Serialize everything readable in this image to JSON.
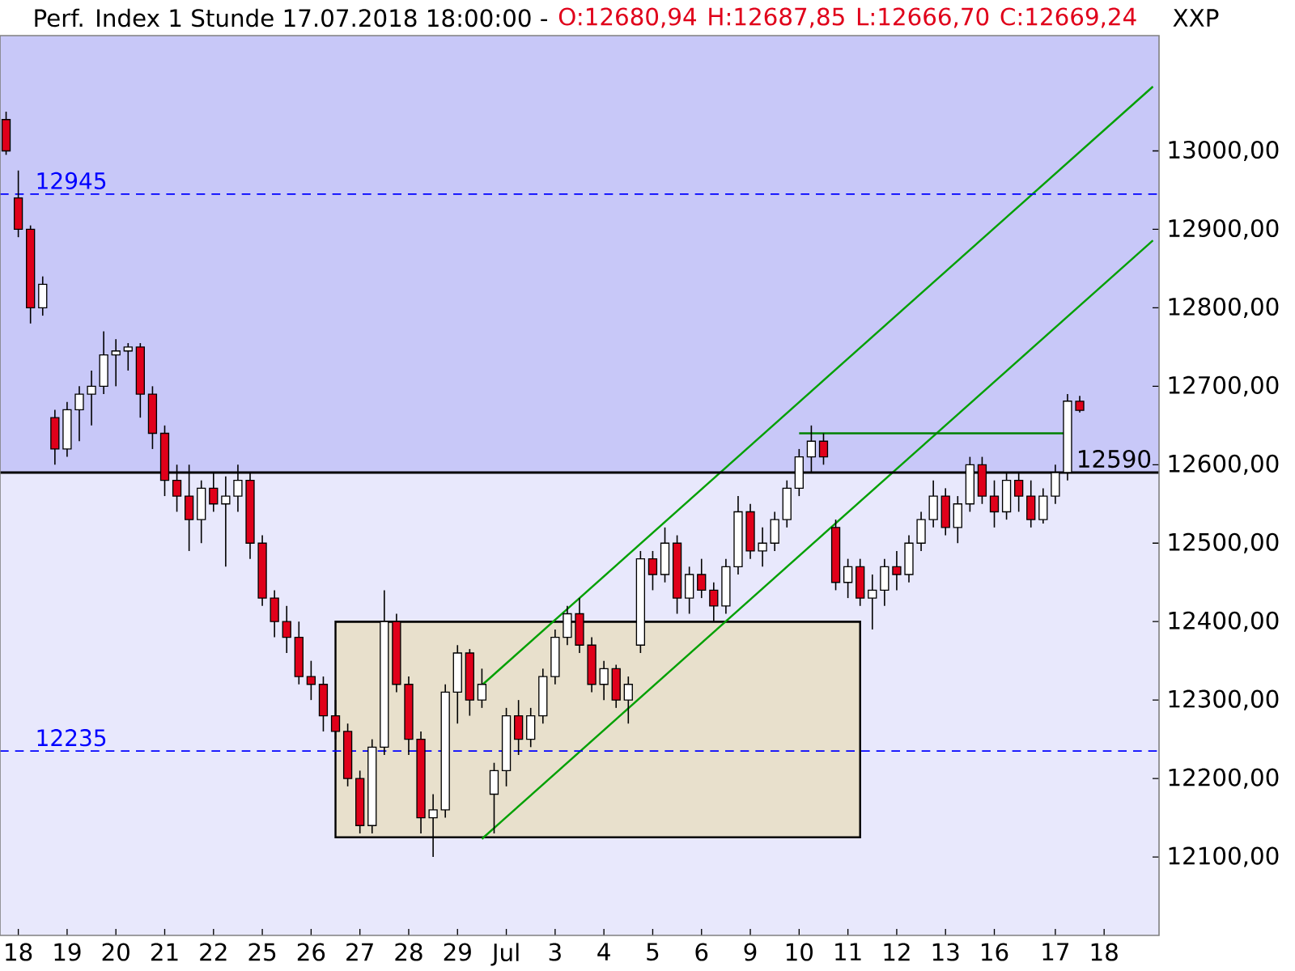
{
  "chart_data": {
    "type": "candlestick",
    "title": "Perf. Index 1 Stunde 17.07.2018 18:00:00 -",
    "annotations": [
      "O:12680,94",
      "H:12687,85",
      "L:12666,70",
      "C:12669,24",
      "XXP"
    ],
    "categories": [
      null,
      "18",
      null,
      null,
      null,
      "19",
      null,
      null,
      null,
      "20",
      null,
      null,
      null,
      "21",
      null,
      null,
      null,
      "22",
      null,
      null,
      null,
      "25",
      null,
      null,
      null,
      "26",
      null,
      null,
      null,
      "27",
      null,
      null,
      null,
      "28",
      null,
      null,
      null,
      "29",
      null,
      null,
      null,
      "Jul",
      null,
      null,
      null,
      "3",
      null,
      null,
      null,
      "4",
      null,
      null,
      null,
      "5",
      null,
      null,
      null,
      "6",
      null,
      null,
      null,
      "9",
      null,
      null,
      null,
      "10",
      null,
      null,
      null,
      "11",
      null,
      null,
      null,
      "12",
      null,
      null,
      null,
      "13",
      null,
      null,
      null,
      "16",
      null,
      null,
      null,
      null,
      "17",
      null,
      null,
      null,
      "18",
      null,
      null,
      null,
      null
    ],
    "ohlc": [
      [
        13040,
        13050,
        12995,
        13000
      ],
      [
        12940,
        12975,
        12890,
        12900
      ],
      [
        12900,
        12905,
        12780,
        12800
      ],
      [
        12800,
        12840,
        12790,
        12830
      ],
      [
        12660,
        12670,
        12600,
        12620
      ],
      [
        12620,
        12680,
        12610,
        12670
      ],
      [
        12670,
        12700,
        12630,
        12690
      ],
      [
        12690,
        12720,
        12650,
        12700
      ],
      [
        12700,
        12770,
        12690,
        12740
      ],
      [
        12740,
        12760,
        12700,
        12745
      ],
      [
        12745,
        12755,
        12720,
        12750
      ],
      [
        12750,
        12755,
        12660,
        12690
      ],
      [
        12690,
        12700,
        12620,
        12640
      ],
      [
        12640,
        12650,
        12560,
        12580
      ],
      [
        12580,
        12600,
        12540,
        12560
      ],
      [
        12560,
        12600,
        12490,
        12530
      ],
      [
        12530,
        12580,
        12500,
        12570
      ],
      [
        12570,
        12590,
        12540,
        12550
      ],
      [
        12550,
        12585,
        12470,
        12560
      ],
      [
        12560,
        12600,
        12540,
        12580
      ],
      [
        12580,
        12590,
        12480,
        12500
      ],
      [
        12500,
        12510,
        12420,
        12430
      ],
      [
        12430,
        12440,
        12380,
        12400
      ],
      [
        12400,
        12420,
        12360,
        12380
      ],
      [
        12380,
        12400,
        12320,
        12330
      ],
      [
        12330,
        12350,
        12300,
        12320
      ],
      [
        12320,
        12330,
        12260,
        12280
      ],
      [
        12280,
        12300,
        12250,
        12260
      ],
      [
        12260,
        12270,
        12190,
        12200
      ],
      [
        12200,
        12210,
        12130,
        12140
      ],
      [
        12140,
        12250,
        12130,
        12240
      ],
      [
        12240,
        12440,
        12230,
        12400
      ],
      [
        12400,
        12410,
        12310,
        12320
      ],
      [
        12320,
        12330,
        12230,
        12250
      ],
      [
        12250,
        12260,
        12130,
        12150
      ],
      [
        12150,
        12180,
        12100,
        12160
      ],
      [
        12160,
        12320,
        12150,
        12310
      ],
      [
        12310,
        12370,
        12270,
        12360
      ],
      [
        12360,
        12365,
        12280,
        12300
      ],
      [
        12300,
        12340,
        12290,
        12320
      ],
      [
        12180,
        12220,
        12130,
        12210
      ],
      [
        12210,
        12290,
        12190,
        12280
      ],
      [
        12280,
        12300,
        12230,
        12250
      ],
      [
        12250,
        12290,
        12240,
        12280
      ],
      [
        12280,
        12340,
        12270,
        12330
      ],
      [
        12330,
        12390,
        12320,
        12380
      ],
      [
        12380,
        12420,
        12370,
        12410
      ],
      [
        12410,
        12430,
        12360,
        12370
      ],
      [
        12370,
        12380,
        12310,
        12320
      ],
      [
        12320,
        12350,
        12300,
        12340
      ],
      [
        12340,
        12345,
        12290,
        12300
      ],
      [
        12300,
        12330,
        12270,
        12320
      ],
      [
        12370,
        12490,
        12360,
        12480
      ],
      [
        12480,
        12490,
        12440,
        12460
      ],
      [
        12460,
        12520,
        12450,
        12500
      ],
      [
        12500,
        12510,
        12410,
        12430
      ],
      [
        12430,
        12470,
        12410,
        12460
      ],
      [
        12460,
        12480,
        12430,
        12440
      ],
      [
        12440,
        12450,
        12400,
        12420
      ],
      [
        12420,
        12480,
        12410,
        12470
      ],
      [
        12470,
        12560,
        12460,
        12540
      ],
      [
        12540,
        12550,
        12480,
        12490
      ],
      [
        12490,
        12520,
        12470,
        12500
      ],
      [
        12500,
        12540,
        12490,
        12530
      ],
      [
        12530,
        12580,
        12520,
        12570
      ],
      [
        12570,
        12620,
        12560,
        12610
      ],
      [
        12610,
        12650,
        12590,
        12630
      ],
      [
        12630,
        12640,
        12600,
        12610
      ],
      [
        12520,
        12530,
        12440,
        12450
      ],
      [
        12450,
        12480,
        12430,
        12470
      ],
      [
        12470,
        12480,
        12420,
        12430
      ],
      [
        12430,
        12460,
        12390,
        12440
      ],
      [
        12440,
        12480,
        12420,
        12470
      ],
      [
        12470,
        12490,
        12440,
        12460
      ],
      [
        12460,
        12510,
        12450,
        12500
      ],
      [
        12500,
        12540,
        12490,
        12530
      ],
      [
        12530,
        12580,
        12520,
        12560
      ],
      [
        12560,
        12570,
        12510,
        12520
      ],
      [
        12520,
        12560,
        12500,
        12550
      ],
      [
        12550,
        12610,
        12540,
        12600
      ],
      [
        12600,
        12610,
        12550,
        12560
      ],
      [
        12560,
        12580,
        12520,
        12540
      ],
      [
        12540,
        12590,
        12530,
        12580
      ],
      [
        12580,
        12590,
        12540,
        12560
      ],
      [
        12560,
        12580,
        12520,
        12530
      ],
      [
        12530,
        12570,
        12525,
        12560
      ],
      [
        12560,
        12600,
        12550,
        12590
      ],
      [
        12590,
        12690,
        12580,
        12681
      ],
      [
        12680.94,
        12687.85,
        12666.7,
        12669.24
      ],
      null,
      null,
      null,
      null,
      null,
      null
    ],
    "series": [
      {
        "type": "line",
        "color": "#000000",
        "upper": [
          null,
          null,
          null,
          null,
          null,
          null,
          null,
          null,
          null,
          null,
          null,
          null,
          null,
          null,
          null,
          null,
          null,
          null,
          null,
          null,
          null,
          null,
          null,
          null,
          null,
          null,
          null,
          12400,
          null,
          null,
          null,
          null,
          null,
          null,
          null,
          null,
          null,
          null,
          null,
          null,
          null,
          null,
          null,
          null,
          null,
          null,
          null,
          null,
          null,
          null,
          null,
          null,
          null,
          null,
          null,
          null,
          null,
          null,
          null,
          null,
          null,
          null,
          null,
          null,
          null,
          null,
          null,
          null,
          null,
          null,
          12400,
          null,
          null,
          null,
          null,
          null,
          null,
          null,
          null,
          null,
          null,
          null,
          null,
          null,
          null,
          null,
          null,
          null,
          null,
          null,
          null,
          null,
          null,
          null,
          null
        ],
        "values": [
          null,
          null,
          null,
          null,
          null,
          null,
          null,
          null,
          null,
          null,
          null,
          null,
          null,
          null,
          null,
          null,
          null,
          null,
          null,
          null,
          null,
          null,
          null,
          null,
          null,
          null,
          null,
          12400,
          null,
          null,
          null,
          null,
          null,
          null,
          null,
          null,
          null,
          null,
          null,
          null,
          null,
          null,
          null,
          null,
          null,
          null,
          null,
          null,
          null,
          null,
          null,
          null,
          null,
          null,
          null,
          null,
          null,
          null,
          null,
          null,
          null,
          null,
          null,
          null,
          null,
          null,
          null,
          null,
          null,
          null,
          12400,
          null,
          null,
          null,
          null,
          null,
          null,
          null,
          null,
          null,
          null,
          null,
          null,
          null,
          null,
          null,
          null,
          null,
          null,
          null,
          null,
          null,
          null,
          null,
          null
        ],
        "lower": [
          null,
          null,
          null,
          null,
          null,
          null,
          null,
          null,
          null,
          null,
          null,
          null,
          null,
          null,
          null,
          null,
          null,
          null,
          null,
          null,
          null,
          null,
          null,
          null,
          null,
          null,
          null,
          12125,
          null,
          null,
          null,
          null,
          null,
          null,
          null,
          null,
          null,
          null,
          null,
          null,
          null,
          null,
          null,
          null,
          null,
          null,
          null,
          null,
          null,
          null,
          null,
          null,
          null,
          null,
          null,
          null,
          null,
          null,
          null,
          null,
          null,
          null,
          null,
          null,
          null,
          null,
          null,
          null,
          null,
          null,
          12125,
          null,
          null,
          null,
          null,
          null,
          null,
          null,
          null,
          null,
          null,
          null,
          null,
          null,
          null,
          null,
          null,
          null,
          null,
          null,
          null,
          null,
          null,
          null,
          null
        ]
      },
      {
        "type": "line",
        "color": "#00a000",
        "values": [
          null,
          null,
          null,
          null,
          null,
          null,
          null,
          null,
          null,
          null,
          null,
          null,
          null,
          null,
          null,
          null,
          null,
          null,
          null,
          null,
          null,
          null,
          null,
          null,
          null,
          null,
          null,
          null,
          null,
          null,
          null,
          null,
          null,
          null,
          null,
          null,
          null,
          null,
          null,
          12319,
          null,
          null,
          null,
          null,
          null,
          null,
          null,
          null,
          null,
          null,
          null,
          null,
          null,
          null,
          null,
          null,
          null,
          null,
          null,
          null,
          null,
          null,
          null,
          null,
          null,
          null,
          null,
          null,
          null,
          null,
          null,
          null,
          null,
          null,
          null,
          null,
          null,
          null,
          null,
          null,
          null,
          null,
          null,
          null,
          null,
          null,
          null,
          null,
          null,
          null,
          null,
          null,
          null,
          null,
          13082
        ]
      },
      {
        "type": "line",
        "color": "#00a000",
        "values": [
          null,
          null,
          null,
          null,
          null,
          null,
          null,
          null,
          null,
          null,
          null,
          null,
          null,
          null,
          null,
          null,
          null,
          null,
          null,
          null,
          null,
          null,
          null,
          null,
          null,
          null,
          null,
          null,
          null,
          null,
          null,
          null,
          null,
          null,
          null,
          null,
          null,
          null,
          null,
          12123,
          null,
          null,
          null,
          null,
          null,
          null,
          null,
          null,
          null,
          null,
          null,
          null,
          null,
          null,
          null,
          null,
          null,
          null,
          null,
          null,
          null,
          null,
          null,
          null,
          null,
          null,
          null,
          null,
          null,
          null,
          null,
          null,
          null,
          null,
          null,
          null,
          null,
          null,
          null,
          null,
          null,
          null,
          null,
          null,
          null,
          null,
          null,
          null,
          null,
          null,
          null,
          null,
          null,
          null,
          12886
        ]
      },
      {
        "type": "line",
        "color": "#008000",
        "values": [
          null,
          null,
          null,
          null,
          null,
          null,
          null,
          null,
          null,
          null,
          null,
          null,
          null,
          null,
          null,
          null,
          null,
          null,
          null,
          null,
          null,
          null,
          null,
          null,
          null,
          null,
          null,
          null,
          null,
          null,
          null,
          null,
          null,
          null,
          null,
          null,
          null,
          null,
          null,
          null,
          null,
          null,
          null,
          null,
          null,
          null,
          null,
          null,
          null,
          null,
          null,
          null,
          null,
          null,
          null,
          null,
          null,
          null,
          null,
          null,
          null,
          null,
          null,
          null,
          null,
          12640,
          null,
          null,
          null,
          null,
          null,
          null,
          null,
          null,
          null,
          null,
          null,
          null,
          null,
          null,
          null,
          null,
          null,
          null,
          null,
          null,
          null,
          12640,
          null,
          null,
          null,
          null,
          null,
          null,
          null
        ]
      }
    ],
    "ylim": [
      12000,
      13147
    ],
    "yticks": [
      {
        "value": 12100,
        "label": "12100,00"
      },
      {
        "value": 12200,
        "label": "12200,00"
      },
      {
        "value": 12300,
        "label": "12300,00"
      },
      {
        "value": 12400,
        "label": "12400,00"
      },
      {
        "value": 12500,
        "label": "12500,00"
      },
      {
        "value": 12600,
        "label": "12600,00"
      },
      {
        "value": 12700,
        "label": "12700,00"
      },
      {
        "value": 12800,
        "label": "12800,00"
      },
      {
        "value": 12900,
        "label": "12900,00"
      },
      {
        "value": 13000,
        "label": "13000,00"
      }
    ],
    "bands": [
      {
        "axis": "y",
        "from": 12590,
        "to": 13147,
        "color": "#c8c8f8"
      },
      {
        "axis": "y",
        "from": 12000,
        "to": 12590,
        "color": "#e8e8fc"
      }
    ],
    "ref_lines": [
      {
        "axis": "y",
        "value": 12590,
        "label": "12590",
        "color": "#000000",
        "line_style": "solid"
      },
      {
        "axis": "y",
        "value": 12945,
        "label": "12945",
        "color": "#0000ff",
        "line_style": "dashed"
      },
      {
        "axis": "y",
        "value": 12235,
        "label": "12235",
        "color": "#0000ff",
        "line_style": "dashed"
      }
    ],
    "grid": false
  }
}
